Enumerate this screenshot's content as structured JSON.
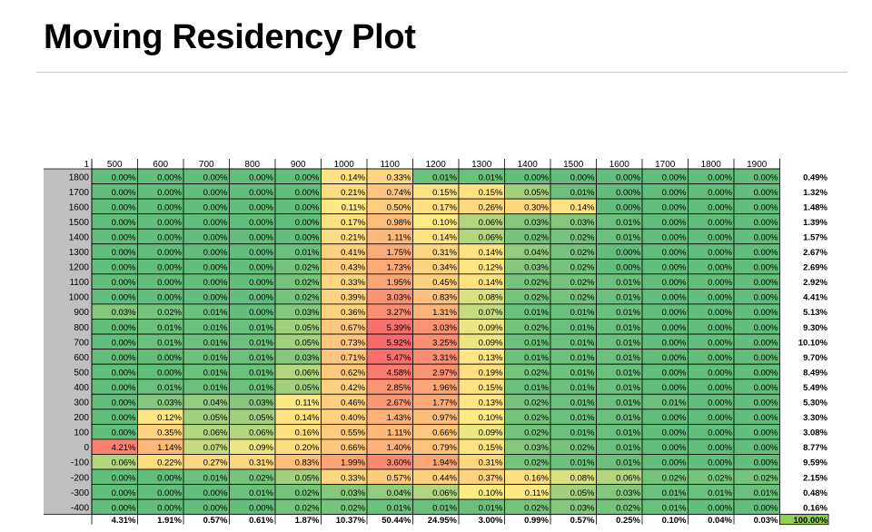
{
  "page": {
    "title": "Moving Residency Plot"
  },
  "chart_data": {
    "type": "heatmap",
    "title": "Moving Residency Plot",
    "corner_label": "1",
    "x": [
      "500",
      "600",
      "700",
      "800",
      "900",
      "1000",
      "1100",
      "1200",
      "1300",
      "1400",
      "1500",
      "1600",
      "1700",
      "1800",
      "1900"
    ],
    "y": [
      "1800",
      "1700",
      "1600",
      "1500",
      "1400",
      "1300",
      "1200",
      "1100",
      "1000",
      "900",
      "800",
      "700",
      "600",
      "500",
      "400",
      "300",
      "200",
      "100",
      "0",
      "-100",
      "-200",
      "-300",
      "-400"
    ],
    "values": [
      [
        0.0,
        0.0,
        0.0,
        0.0,
        0.0,
        0.14,
        0.33,
        0.01,
        0.01,
        0.0,
        0.0,
        0.0,
        0.0,
        0.0,
        0.0
      ],
      [
        0.0,
        0.0,
        0.0,
        0.0,
        0.0,
        0.21,
        0.74,
        0.15,
        0.15,
        0.05,
        0.01,
        0.0,
        0.0,
        0.0,
        0.0
      ],
      [
        0.0,
        0.0,
        0.0,
        0.0,
        0.0,
        0.11,
        0.5,
        0.17,
        0.26,
        0.3,
        0.14,
        0.0,
        0.0,
        0.0,
        0.0
      ],
      [
        0.0,
        0.0,
        0.0,
        0.0,
        0.0,
        0.17,
        0.98,
        0.1,
        0.06,
        0.03,
        0.03,
        0.01,
        0.0,
        0.0,
        0.0
      ],
      [
        0.0,
        0.0,
        0.0,
        0.0,
        0.0,
        0.21,
        1.11,
        0.14,
        0.06,
        0.02,
        0.02,
        0.01,
        0.0,
        0.0,
        0.0
      ],
      [
        0.0,
        0.0,
        0.0,
        0.0,
        0.01,
        0.41,
        1.75,
        0.31,
        0.14,
        0.04,
        0.02,
        0.0,
        0.0,
        0.0,
        0.0
      ],
      [
        0.0,
        0.0,
        0.0,
        0.0,
        0.02,
        0.43,
        1.73,
        0.34,
        0.12,
        0.03,
        0.02,
        0.0,
        0.0,
        0.0,
        0.0
      ],
      [
        0.0,
        0.0,
        0.0,
        0.0,
        0.02,
        0.33,
        1.95,
        0.45,
        0.14,
        0.02,
        0.02,
        0.01,
        0.0,
        0.0,
        0.0
      ],
      [
        0.0,
        0.0,
        0.0,
        0.0,
        0.02,
        0.39,
        3.03,
        0.83,
        0.08,
        0.02,
        0.02,
        0.01,
        0.0,
        0.0,
        0.0
      ],
      [
        0.03,
        0.02,
        0.01,
        0.0,
        0.03,
        0.36,
        3.27,
        1.31,
        0.07,
        0.01,
        0.01,
        0.01,
        0.0,
        0.0,
        0.0
      ],
      [
        0.0,
        0.01,
        0.01,
        0.01,
        0.05,
        0.67,
        5.39,
        3.03,
        0.09,
        0.02,
        0.01,
        0.01,
        0.0,
        0.0,
        0.0
      ],
      [
        0.0,
        0.01,
        0.01,
        0.01,
        0.05,
        0.73,
        5.92,
        3.25,
        0.09,
        0.01,
        0.01,
        0.01,
        0.0,
        0.0,
        0.0
      ],
      [
        0.0,
        0.0,
        0.01,
        0.01,
        0.03,
        0.71,
        5.47,
        3.31,
        0.13,
        0.01,
        0.01,
        0.01,
        0.0,
        0.0,
        0.0
      ],
      [
        0.0,
        0.0,
        0.01,
        0.01,
        0.06,
        0.62,
        4.58,
        2.97,
        0.19,
        0.02,
        0.01,
        0.01,
        0.0,
        0.0,
        0.0
      ],
      [
        0.0,
        0.01,
        0.01,
        0.01,
        0.05,
        0.42,
        2.85,
        1.96,
        0.15,
        0.01,
        0.01,
        0.01,
        0.0,
        0.0,
        0.0
      ],
      [
        0.0,
        0.03,
        0.04,
        0.03,
        0.11,
        0.46,
        2.67,
        1.77,
        0.13,
        0.02,
        0.01,
        0.01,
        0.01,
        0.0,
        0.0
      ],
      [
        0.0,
        0.12,
        0.05,
        0.05,
        0.14,
        0.4,
        1.43,
        0.97,
        0.1,
        0.02,
        0.01,
        0.01,
        0.0,
        0.0,
        0.0
      ],
      [
        0.0,
        0.35,
        0.06,
        0.06,
        0.16,
        0.55,
        1.11,
        0.66,
        0.09,
        0.02,
        0.01,
        0.01,
        0.0,
        0.0,
        0.0
      ],
      [
        4.21,
        1.14,
        0.07,
        0.09,
        0.2,
        0.66,
        1.4,
        0.79,
        0.15,
        0.03,
        0.02,
        0.01,
        0.0,
        0.0,
        0.0
      ],
      [
        0.06,
        0.22,
        0.27,
        0.31,
        0.83,
        1.99,
        3.6,
        1.94,
        0.31,
        0.02,
        0.01,
        0.01,
        0.0,
        0.0,
        0.0
      ],
      [
        0.0,
        0.0,
        0.01,
        0.02,
        0.05,
        0.33,
        0.57,
        0.44,
        0.37,
        0.16,
        0.08,
        0.06,
        0.02,
        0.02,
        0.02
      ],
      [
        0.0,
        0.0,
        0.0,
        0.01,
        0.02,
        0.03,
        0.04,
        0.06,
        0.1,
        0.11,
        0.05,
        0.03,
        0.01,
        0.01,
        0.01
      ],
      [
        0.0,
        0.0,
        0.0,
        0.0,
        0.02,
        0.02,
        0.01,
        0.01,
        0.01,
        0.02,
        0.03,
        0.02,
        0.01,
        0.0,
        0.0
      ]
    ],
    "row_totals": [
      "0.49%",
      "1.32%",
      "1.48%",
      "1.39%",
      "1.57%",
      "2.67%",
      "2.69%",
      "2.92%",
      "4.41%",
      "5.13%",
      "9.30%",
      "10.10%",
      "9.70%",
      "8.49%",
      "5.49%",
      "5.30%",
      "3.30%",
      "3.08%",
      "8.77%",
      "9.59%",
      "2.15%",
      "0.48%",
      "0.16%"
    ],
    "col_totals": [
      "4.31%",
      "1.91%",
      "0.57%",
      "0.61%",
      "1.87%",
      "10.37%",
      "50.44%",
      "24.95%",
      "3.00%",
      "0.99%",
      "0.57%",
      "0.25%",
      "0.10%",
      "0.04%",
      "0.03%"
    ],
    "grand_total": "100.00%",
    "value_suffix": "%",
    "colors": {
      "low": "#63be7b",
      "mid": "#ffeb84",
      "high": "#f8696b",
      "total_fill": "#92d050",
      "row_header_fill": "#c0c0c0",
      "grid": "#000000"
    }
  }
}
